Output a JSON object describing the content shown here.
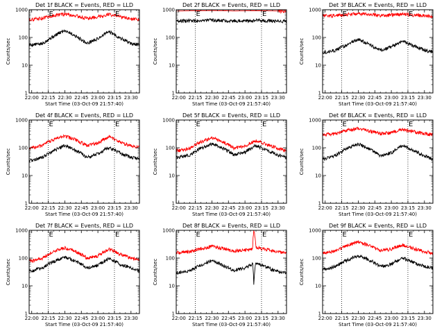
{
  "figure": {
    "xlabel": "Start Time (03-Oct-09 21:57:40)",
    "ylabel": "Counts/sec",
    "x_ticks": [
      "22:00",
      "22:15",
      "22:30",
      "22:45",
      "23:00",
      "23:15",
      "23:30"
    ],
    "y_ticks": [
      "1",
      "10",
      "100",
      "1000"
    ],
    "flag_label": "E",
    "colors": {
      "events": "#000000",
      "lld": "#ff0000",
      "frame": "#000000",
      "background": "#ffffff"
    }
  },
  "chart_data": [
    {
      "type": "line",
      "title": "Det 1f BLACK = Events, RED = LLD",
      "xlabel": "Start Time (03-Oct-09 21:57:40)",
      "ylabel": "Counts/sec",
      "x_range": [
        "21:57:40",
        "23:37:40"
      ],
      "ylim": [
        1,
        1000
      ],
      "y_scale": "log",
      "flags": [
        "22:15",
        "23:15"
      ],
      "series": [
        {
          "name": "Events",
          "color": "#000000",
          "x": [
            "22:00",
            "22:10",
            "22:20",
            "22:30",
            "22:40",
            "22:50",
            "23:00",
            "23:10",
            "23:20",
            "23:30",
            "23:37"
          ],
          "values": [
            55,
            60,
            110,
            180,
            110,
            60,
            90,
            160,
            95,
            60,
            55
          ]
        },
        {
          "name": "LLD",
          "color": "#ff0000",
          "x": [
            "22:00",
            "22:10",
            "22:20",
            "22:30",
            "22:40",
            "22:50",
            "23:00",
            "23:10",
            "23:20",
            "23:30",
            "23:37"
          ],
          "values": [
            450,
            500,
            620,
            700,
            600,
            480,
            560,
            680,
            560,
            450,
            440
          ]
        }
      ]
    },
    {
      "type": "line",
      "title": "Det 2f BLACK = Events, RED = LLD",
      "xlabel": "Start Time (03-Oct-09 21:57:40)",
      "ylabel": "Counts/sec",
      "x_range": [
        "21:57:40",
        "23:37:40"
      ],
      "ylim": [
        1,
        1000
      ],
      "y_scale": "log",
      "flags": [
        "22:15",
        "23:15"
      ],
      "series": [
        {
          "name": "Events",
          "color": "#000000",
          "x": [
            "22:00",
            "22:10",
            "22:20",
            "22:30",
            "22:40",
            "22:50",
            "23:00",
            "23:10",
            "23:20",
            "23:30",
            "23:37"
          ],
          "values": [
            400,
            400,
            410,
            420,
            410,
            400,
            400,
            410,
            400,
            395,
            390
          ]
        },
        {
          "name": "LLD",
          "color": "#ff0000",
          "x": [
            "22:00",
            "22:10",
            "22:20",
            "22:30",
            "22:40",
            "22:50",
            "23:00",
            "23:10",
            "23:20",
            "23:30",
            "23:37"
          ],
          "values": [
            900,
            910,
            920,
            930,
            920,
            900,
            910,
            920,
            910,
            900,
            890
          ]
        }
      ]
    },
    {
      "type": "line",
      "title": "Det 3f BLACK = Events, RED = LLD",
      "xlabel": "Start Time (03-Oct-09 21:57:40)",
      "ylabel": "Counts/sec",
      "x_range": [
        "21:57:40",
        "23:37:40"
      ],
      "ylim": [
        1,
        1000
      ],
      "y_scale": "log",
      "flags": [
        "22:15",
        "23:15"
      ],
      "series": [
        {
          "name": "Events",
          "color": "#000000",
          "x": [
            "22:00",
            "22:10",
            "22:20",
            "22:30",
            "22:40",
            "22:50",
            "23:00",
            "23:10",
            "23:20",
            "23:30",
            "23:37"
          ],
          "values": [
            30,
            35,
            55,
            85,
            55,
            35,
            45,
            75,
            50,
            35,
            30
          ]
        },
        {
          "name": "LLD",
          "color": "#ff0000",
          "x": [
            "22:00",
            "22:10",
            "22:20",
            "22:30",
            "22:40",
            "22:50",
            "23:00",
            "23:10",
            "23:20",
            "23:30",
            "23:37"
          ],
          "values": [
            600,
            620,
            680,
            720,
            680,
            620,
            650,
            700,
            650,
            600,
            580
          ]
        }
      ]
    },
    {
      "type": "line",
      "title": "Det 4f BLACK = Events, RED = LLD",
      "xlabel": "Start Time (03-Oct-09 21:57:40)",
      "ylabel": "Counts/sec",
      "x_range": [
        "21:57:40",
        "23:37:40"
      ],
      "ylim": [
        1,
        1000
      ],
      "y_scale": "log",
      "flags": [
        "22:15",
        "23:15"
      ],
      "series": [
        {
          "name": "Events",
          "color": "#000000",
          "x": [
            "22:00",
            "22:10",
            "22:20",
            "22:30",
            "22:40",
            "22:50",
            "23:00",
            "23:10",
            "23:20",
            "23:30",
            "23:37"
          ],
          "values": [
            35,
            45,
            80,
            120,
            80,
            45,
            60,
            100,
            65,
            45,
            40
          ]
        },
        {
          "name": "LLD",
          "color": "#ff0000",
          "x": [
            "22:00",
            "22:10",
            "22:20",
            "22:30",
            "22:40",
            "22:50",
            "23:00",
            "23:10",
            "23:20",
            "23:30",
            "23:37"
          ],
          "values": [
            100,
            120,
            200,
            270,
            190,
            120,
            150,
            250,
            160,
            115,
            105
          ]
        }
      ]
    },
    {
      "type": "line",
      "title": "Det 5f BLACK = Events, RED = LLD",
      "xlabel": "Start Time (03-Oct-09 21:57:40)",
      "ylabel": "Counts/sec",
      "x_range": [
        "21:57:40",
        "23:37:40"
      ],
      "ylim": [
        1,
        1000
      ],
      "y_scale": "log",
      "flags": [
        "22:15",
        "23:15"
      ],
      "series": [
        {
          "name": "Events",
          "color": "#000000",
          "x": [
            "22:00",
            "22:10",
            "22:20",
            "22:30",
            "22:40",
            "22:50",
            "23:00",
            "23:10",
            "23:20",
            "23:30",
            "23:37"
          ],
          "values": [
            45,
            55,
            95,
            140,
            95,
            55,
            70,
            120,
            80,
            55,
            45
          ]
        },
        {
          "name": "LLD",
          "color": "#ff0000",
          "x": [
            "22:00",
            "22:10",
            "22:20",
            "22:30",
            "22:40",
            "22:50",
            "23:00",
            "23:10",
            "23:20",
            "23:30",
            "23:37"
          ],
          "values": [
            80,
            95,
            160,
            230,
            160,
            95,
            115,
            180,
            130,
            95,
            80
          ]
        }
      ]
    },
    {
      "type": "line",
      "title": "Det 6f BLACK = Events, RED = LLD",
      "xlabel": "Start Time (03-Oct-09 21:57:40)",
      "ylabel": "Counts/sec",
      "x_range": [
        "21:57:40",
        "23:37:40"
      ],
      "ylim": [
        1,
        1000
      ],
      "y_scale": "log",
      "flags": [
        "22:15",
        "23:15"
      ],
      "series": [
        {
          "name": "Events",
          "color": "#000000",
          "x": [
            "22:00",
            "22:10",
            "22:20",
            "22:30",
            "22:40",
            "22:50",
            "23:00",
            "23:10",
            "23:20",
            "23:30",
            "23:37"
          ],
          "values": [
            40,
            55,
            95,
            140,
            90,
            50,
            65,
            120,
            80,
            50,
            40
          ]
        },
        {
          "name": "LLD",
          "color": "#ff0000",
          "x": [
            "22:00",
            "22:10",
            "22:20",
            "22:30",
            "22:40",
            "22:50",
            "23:00",
            "23:10",
            "23:20",
            "23:30",
            "23:37"
          ],
          "values": [
            300,
            320,
            420,
            500,
            400,
            320,
            350,
            450,
            380,
            320,
            300
          ]
        }
      ]
    },
    {
      "type": "line",
      "title": "Det 7f BLACK = Events, RED = LLD",
      "xlabel": "Start Time (03-Oct-09 21:57:40)",
      "ylabel": "Counts/sec",
      "x_range": [
        "21:57:40",
        "23:37:40"
      ],
      "ylim": [
        1,
        1000
      ],
      "y_scale": "log",
      "flags": [
        "22:15",
        "23:15"
      ],
      "series": [
        {
          "name": "Events",
          "color": "#000000",
          "x": [
            "22:00",
            "22:10",
            "22:20",
            "22:30",
            "22:40",
            "22:50",
            "23:00",
            "23:10",
            "23:20",
            "23:30",
            "23:37"
          ],
          "values": [
            35,
            45,
            75,
            110,
            75,
            45,
            55,
            95,
            60,
            45,
            35
          ]
        },
        {
          "name": "LLD",
          "color": "#ff0000",
          "x": [
            "22:00",
            "22:10",
            "22:20",
            "22:30",
            "22:40",
            "22:50",
            "23:00",
            "23:10",
            "23:20",
            "23:30",
            "23:37"
          ],
          "values": [
            80,
            100,
            170,
            240,
            170,
            100,
            120,
            210,
            140,
            100,
            85
          ]
        }
      ]
    },
    {
      "type": "line",
      "title": "Det 8f BLACK = Events, RED = LLD",
      "xlabel": "Start Time (03-Oct-09 21:57:40)",
      "ylabel": "Counts/sec",
      "x_range": [
        "21:57:40",
        "23:37:40"
      ],
      "ylim": [
        1,
        1000
      ],
      "y_scale": "log",
      "flags": [
        "22:15",
        "23:15"
      ],
      "series": [
        {
          "name": "Events",
          "color": "#000000",
          "x": [
            "22:00",
            "22:10",
            "22:20",
            "22:30",
            "22:40",
            "22:50",
            "23:00",
            "23:07",
            "23:08",
            "23:10",
            "23:20",
            "23:30",
            "23:37"
          ],
          "values": [
            30,
            35,
            55,
            80,
            55,
            35,
            45,
            60,
            10,
            70,
            45,
            32,
            30
          ]
        },
        {
          "name": "LLD",
          "color": "#ff0000",
          "x": [
            "22:00",
            "22:10",
            "22:20",
            "22:30",
            "22:40",
            "22:50",
            "23:00",
            "23:07",
            "23:08",
            "23:10",
            "23:20",
            "23:30",
            "23:37"
          ],
          "values": [
            160,
            170,
            220,
            260,
            220,
            180,
            200,
            220,
            1000,
            240,
            200,
            165,
            160
          ]
        }
      ]
    },
    {
      "type": "line",
      "title": "Det 9f BLACK = Events, RED = LLD",
      "xlabel": "Start Time (03-Oct-09 21:57:40)",
      "ylabel": "Counts/sec",
      "x_range": [
        "21:57:40",
        "23:37:40"
      ],
      "ylim": [
        1,
        1000
      ],
      "y_scale": "log",
      "flags": [
        "22:15",
        "23:15"
      ],
      "series": [
        {
          "name": "Events",
          "color": "#000000",
          "x": [
            "22:00",
            "22:10",
            "22:20",
            "22:30",
            "22:40",
            "22:50",
            "23:00",
            "23:10",
            "23:20",
            "23:30",
            "23:37"
          ],
          "values": [
            40,
            50,
            85,
            120,
            85,
            50,
            60,
            100,
            70,
            50,
            45
          ]
        },
        {
          "name": "LLD",
          "color": "#ff0000",
          "x": [
            "22:00",
            "22:10",
            "22:20",
            "22:30",
            "22:40",
            "22:50",
            "23:00",
            "23:10",
            "23:20",
            "23:30",
            "23:37"
          ],
          "values": [
            160,
            180,
            280,
            380,
            280,
            185,
            210,
            300,
            220,
            170,
            155
          ]
        }
      ]
    }
  ]
}
